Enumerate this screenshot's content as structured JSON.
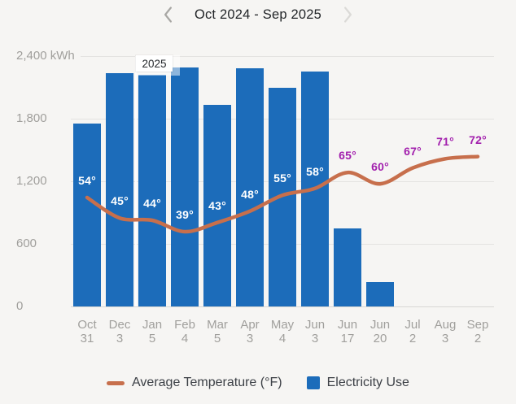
{
  "header": {
    "title": "Oct 2024 - Sep 2025",
    "prev_icon": "chevron-left",
    "next_icon": "chevron-right"
  },
  "colors": {
    "background": "#f6f5f3",
    "bar_blue": "#1c6cba",
    "line_orange": "#c76f4c",
    "temp_label_purple": "#a21fad",
    "axis_text_gray": "#a09f9c"
  },
  "chart_data": {
    "type": "bar",
    "subtype": "bar+line combo",
    "title": "Oct 2024 - Sep 2025",
    "categories": [
      {
        "month": "Oct",
        "day": "31"
      },
      {
        "month": "Dec",
        "day": "3"
      },
      {
        "month": "Jan",
        "day": "5"
      },
      {
        "month": "Feb",
        "day": "4"
      },
      {
        "month": "Mar",
        "day": "5"
      },
      {
        "month": "Apr",
        "day": "3"
      },
      {
        "month": "May",
        "day": "4"
      },
      {
        "month": "Jun",
        "day": "3"
      },
      {
        "month": "Jun",
        "day": "17"
      },
      {
        "month": "Jun",
        "day": "20"
      },
      {
        "month": "Jul",
        "day": "2"
      },
      {
        "month": "Aug",
        "day": "3"
      },
      {
        "month": "Sep",
        "day": "2"
      }
    ],
    "series": [
      {
        "name": "Electricity Use",
        "type": "bar",
        "unit": "kWh",
        "color": "#1c6cba",
        "values": [
          1750,
          2240,
          2220,
          2290,
          1930,
          2280,
          2100,
          2250,
          750,
          230,
          null,
          null,
          null
        ]
      },
      {
        "name": "Average Temperature (°F)",
        "type": "line",
        "unit": "°F",
        "color": "#c76f4c",
        "values": [
          54,
          45,
          44,
          39,
          43,
          48,
          55,
          58,
          65,
          60,
          67,
          71,
          72
        ],
        "point_labels": [
          "54°",
          "45°",
          "44°",
          "39°",
          "43°",
          "48°",
          "55°",
          "58°",
          "65°",
          "60°",
          "67°",
          "71°",
          "72°"
        ],
        "label_on_bar": [
          true,
          true,
          true,
          true,
          true,
          true,
          true,
          true,
          false,
          false,
          false,
          false,
          false
        ],
        "off_bar_label_color": "#a21fad"
      }
    ],
    "y_axis": {
      "min": 0,
      "max": 2400,
      "tick_step": 600,
      "tick_labels": [
        "0",
        "600",
        "1,200",
        "1,800",
        "2,400 kWh"
      ],
      "grid": true
    },
    "annotation": {
      "year_label": "2025",
      "boundary_after_index": 1
    },
    "legend_position": "bottom"
  },
  "legend": {
    "items": [
      {
        "label": "Average Temperature (°F)",
        "swatch": "line-dash",
        "color": "#c76f4c"
      },
      {
        "label": "Electricity Use",
        "swatch": "square",
        "color": "#1c6cba"
      }
    ]
  }
}
